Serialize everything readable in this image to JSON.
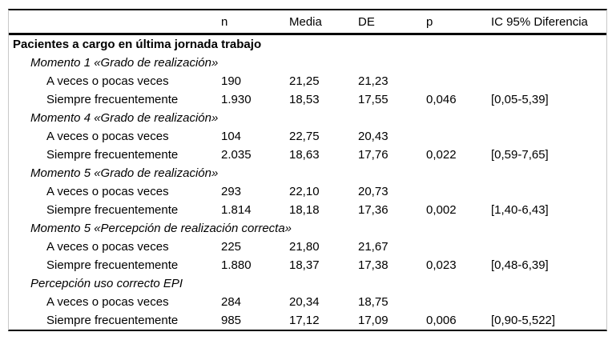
{
  "colors": {
    "background": "#ffffff",
    "text": "#000000",
    "rule": "#000000",
    "frame_edge": "#c9c9c9"
  },
  "table": {
    "columns": [
      "",
      "n",
      "Media",
      "DE",
      "p",
      "IC 95% Diferencia"
    ],
    "rows": [
      {
        "type": "section",
        "label": "Pacientes a cargo en última jornada trabajo",
        "n": "",
        "media": "",
        "de": "",
        "p": "",
        "ic": ""
      },
      {
        "type": "group",
        "label": "Momento 1 «Grado de realización»",
        "n": "",
        "media": "",
        "de": "",
        "p": "",
        "ic": ""
      },
      {
        "type": "item",
        "label": "A veces o pocas veces",
        "n": "190",
        "media": "21,25",
        "de": "21,23",
        "p": "",
        "ic": ""
      },
      {
        "type": "item",
        "label": "Siempre frecuentemente",
        "n": "1.930",
        "media": "18,53",
        "de": "17,55",
        "p": "0,046",
        "ic": "[0,05-5,39]"
      },
      {
        "type": "group",
        "label": "Momento 4 «Grado de realización»",
        "n": "",
        "media": "",
        "de": "",
        "p": "",
        "ic": ""
      },
      {
        "type": "item",
        "label": "A veces o pocas veces",
        "n": "104",
        "media": "22,75",
        "de": "20,43",
        "p": "",
        "ic": ""
      },
      {
        "type": "item",
        "label": "Siempre frecuentemente",
        "n": "2.035",
        "media": "18,63",
        "de": "17,76",
        "p": "0,022",
        "ic": "[0,59-7,65]"
      },
      {
        "type": "group",
        "label": "Momento 5 «Grado de realización»",
        "n": "",
        "media": "",
        "de": "",
        "p": "",
        "ic": ""
      },
      {
        "type": "item",
        "label": "A veces o pocas veces",
        "n": "293",
        "media": "22,10",
        "de": "20,73",
        "p": "",
        "ic": ""
      },
      {
        "type": "item",
        "label": "Siempre frecuentemente",
        "n": "1.814",
        "media": "18,18",
        "de": "17,36",
        "p": "0,002",
        "ic": "[1,40-6,43]"
      },
      {
        "type": "group",
        "label": "Momento 5 «Percepción de realización correcta»",
        "n": "",
        "media": "",
        "de": "",
        "p": "",
        "ic": ""
      },
      {
        "type": "item",
        "label": "A veces o pocas veces",
        "n": "225",
        "media": "21,80",
        "de": "21,67",
        "p": "",
        "ic": ""
      },
      {
        "type": "item",
        "label": "Siempre frecuentemente",
        "n": "1.880",
        "media": "18,37",
        "de": "17,38",
        "p": "0,023",
        "ic": "[0,48-6,39]"
      },
      {
        "type": "group",
        "label": "Percepción uso correcto EPI",
        "n": "",
        "media": "",
        "de": "",
        "p": "",
        "ic": ""
      },
      {
        "type": "item",
        "label": "A veces o pocas veces",
        "n": "284",
        "media": "20,34",
        "de": "18,75",
        "p": "",
        "ic": ""
      },
      {
        "type": "item",
        "label": "Siempre frecuentemente",
        "n": "985",
        "media": "17,12",
        "de": "17,09",
        "p": "0,006",
        "ic": "[0,90-5,522]"
      }
    ]
  }
}
